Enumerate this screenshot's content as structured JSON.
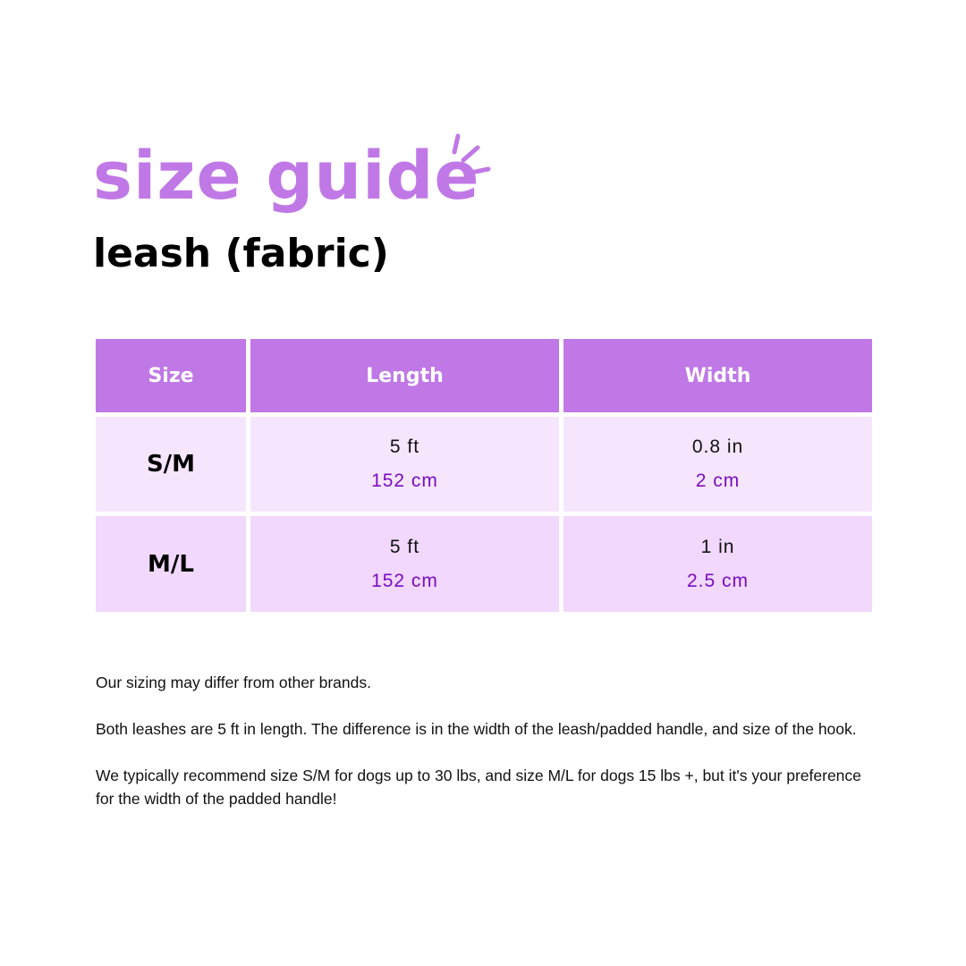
{
  "title": "size guide",
  "subtitle": "leash (fabric)",
  "colors": {
    "accent": "#c078e6",
    "row1": "#f6e6fd",
    "row2": "#f1d8fc",
    "metric_text": "#7a0dc0"
  },
  "table": {
    "headers": [
      "Size",
      "Length",
      "Width"
    ],
    "rows": [
      {
        "size": "S/M",
        "length_imperial": "5 ft",
        "length_metric": "152 cm",
        "width_imperial": "0.8 in",
        "width_metric": "2 cm"
      },
      {
        "size": "M/L",
        "length_imperial": "5 ft",
        "length_metric": "152 cm",
        "width_imperial": "1 in",
        "width_metric": "2.5 cm"
      }
    ]
  },
  "notes": [
    "Our sizing may differ from other brands.",
    "Both leashes are 5 ft in length. The difference is in the width of the leash/padded handle, and size of the hook.",
    "We typically recommend size S/M for dogs up to 30 lbs, and size M/L for dogs 15 lbs +, but it's your preference for the width of the padded handle!"
  ]
}
